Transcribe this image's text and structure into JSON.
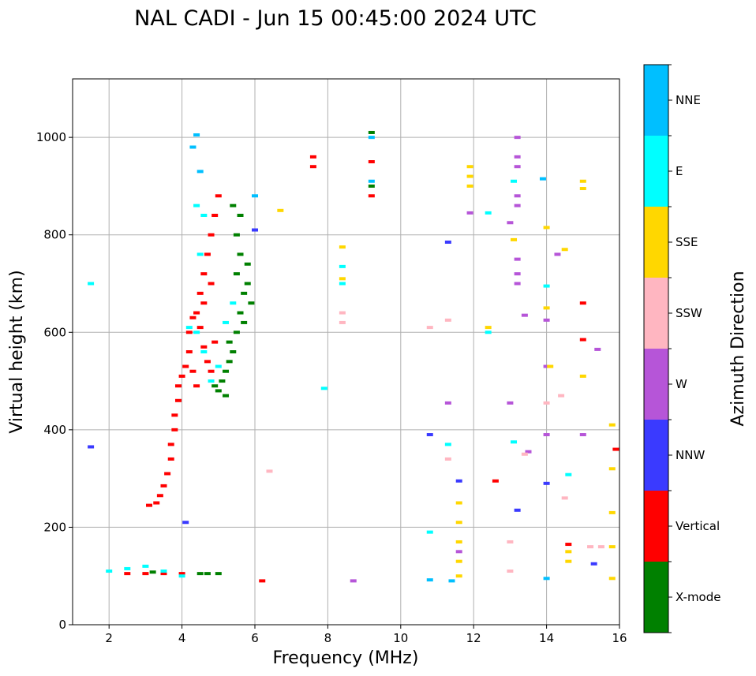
{
  "chart_data": {
    "type": "scatter",
    "title": "NAL CADI - Jun 15 00:45:00 2024 UTC",
    "xlabel": "Frequency (MHz)",
    "ylabel": "Virtual height (km)",
    "xlim": [
      1,
      16
    ],
    "ylim": [
      0,
      1120
    ],
    "xticks": [
      "2",
      "4",
      "6",
      "8",
      "10",
      "12",
      "14",
      "16"
    ],
    "yticks": [
      "0",
      "200",
      "400",
      "600",
      "800",
      "1000"
    ],
    "grid": true,
    "colorbar": {
      "label": "Azimuth Direction",
      "categories": [
        {
          "name": "X-mode",
          "color": "#008000"
        },
        {
          "name": "Vertical",
          "color": "#ff0000"
        },
        {
          "name": "NNW",
          "color": "#3a3aff"
        },
        {
          "name": "W",
          "color": "#b655d8"
        },
        {
          "name": "SSW",
          "color": "#ffb6c1"
        },
        {
          "name": "SSE",
          "color": "#ffd700"
        },
        {
          "name": "E",
          "color": "#00ffff"
        },
        {
          "name": "NNE",
          "color": "#00bfff"
        }
      ]
    },
    "series": [
      {
        "name": "X-mode",
        "points": [
          [
            5.0,
            480
          ],
          [
            5.1,
            500
          ],
          [
            5.2,
            520
          ],
          [
            5.3,
            540
          ],
          [
            5.4,
            560
          ],
          [
            5.5,
            600
          ],
          [
            5.6,
            640
          ],
          [
            5.7,
            680
          ],
          [
            5.5,
            720
          ],
          [
            5.6,
            760
          ],
          [
            5.5,
            800
          ],
          [
            5.6,
            840
          ],
          [
            5.4,
            860
          ],
          [
            5.8,
            700
          ],
          [
            5.9,
            660
          ],
          [
            5.2,
            470
          ],
          [
            4.9,
            490
          ],
          [
            5.3,
            580
          ],
          [
            5.7,
            620
          ],
          [
            5.8,
            740
          ],
          [
            4.5,
            105
          ],
          [
            4.7,
            105
          ],
          [
            5.0,
            105
          ],
          [
            3.2,
            108
          ],
          [
            9.2,
            900
          ],
          [
            9.2,
            1010
          ]
        ]
      },
      {
        "name": "Vertical",
        "points": [
          [
            3.1,
            245
          ],
          [
            3.3,
            250
          ],
          [
            3.4,
            265
          ],
          [
            3.5,
            285
          ],
          [
            3.6,
            310
          ],
          [
            3.7,
            340
          ],
          [
            3.7,
            370
          ],
          [
            3.8,
            400
          ],
          [
            3.8,
            430
          ],
          [
            3.9,
            460
          ],
          [
            3.9,
            490
          ],
          [
            4.0,
            510
          ],
          [
            4.1,
            530
          ],
          [
            4.2,
            560
          ],
          [
            4.2,
            600
          ],
          [
            4.3,
            630
          ],
          [
            4.4,
            640
          ],
          [
            4.5,
            610
          ],
          [
            4.6,
            570
          ],
          [
            4.7,
            540
          ],
          [
            4.8,
            520
          ],
          [
            4.9,
            580
          ],
          [
            4.5,
            680
          ],
          [
            4.6,
            720
          ],
          [
            4.7,
            760
          ],
          [
            4.8,
            800
          ],
          [
            4.9,
            840
          ],
          [
            5.0,
            880
          ],
          [
            4.6,
            660
          ],
          [
            4.8,
            700
          ],
          [
            4.3,
            520
          ],
          [
            4.4,
            490
          ],
          [
            2.5,
            105
          ],
          [
            3.0,
            105
          ],
          [
            3.5,
            105
          ],
          [
            4.0,
            105
          ],
          [
            6.2,
            90
          ],
          [
            7.6,
            960
          ],
          [
            7.6,
            940
          ],
          [
            9.2,
            950
          ],
          [
            9.2,
            880
          ],
          [
            12.6,
            295
          ],
          [
            15.0,
            660
          ],
          [
            15.0,
            585
          ],
          [
            14.6,
            165
          ],
          [
            15.9,
            360
          ]
        ]
      },
      {
        "name": "NNW",
        "points": [
          [
            1.5,
            365
          ],
          [
            4.1,
            210
          ],
          [
            10.8,
            390
          ],
          [
            11.6,
            295
          ],
          [
            13.2,
            235
          ],
          [
            14.0,
            290
          ],
          [
            15.3,
            125
          ],
          [
            6.0,
            810
          ],
          [
            11.3,
            785
          ]
        ]
      },
      {
        "name": "W",
        "points": [
          [
            13.2,
            1000
          ],
          [
            13.2,
            960
          ],
          [
            13.2,
            940
          ],
          [
            13.2,
            880
          ],
          [
            13.2,
            860
          ],
          [
            13.2,
            750
          ],
          [
            13.2,
            720
          ],
          [
            13.2,
            700
          ],
          [
            13.4,
            635
          ],
          [
            13.0,
            455
          ],
          [
            13.5,
            355
          ],
          [
            14.0,
            625
          ],
          [
            14.0,
            530
          ],
          [
            14.0,
            390
          ],
          [
            15.4,
            565
          ],
          [
            15.0,
            390
          ],
          [
            8.7,
            90
          ],
          [
            11.6,
            150
          ],
          [
            11.3,
            455
          ],
          [
            11.9,
            845
          ],
          [
            13.0,
            825
          ],
          [
            14.3,
            760
          ]
        ]
      },
      {
        "name": "SSW",
        "points": [
          [
            13.0,
            170
          ],
          [
            13.0,
            110
          ],
          [
            13.4,
            350
          ],
          [
            14.0,
            455
          ],
          [
            14.4,
            470
          ],
          [
            14.5,
            260
          ],
          [
            15.2,
            160
          ],
          [
            15.5,
            160
          ],
          [
            11.3,
            340
          ],
          [
            11.3,
            625
          ],
          [
            10.8,
            610
          ],
          [
            8.4,
            640
          ],
          [
            8.4,
            620
          ],
          [
            6.4,
            315
          ]
        ]
      },
      {
        "name": "SSE",
        "points": [
          [
            11.6,
            250
          ],
          [
            11.6,
            210
          ],
          [
            11.6,
            170
          ],
          [
            11.6,
            130
          ],
          [
            11.6,
            100
          ],
          [
            11.9,
            940
          ],
          [
            11.9,
            920
          ],
          [
            11.9,
            900
          ],
          [
            12.4,
            610
          ],
          [
            13.1,
            790
          ],
          [
            14.0,
            815
          ],
          [
            14.0,
            650
          ],
          [
            14.1,
            530
          ],
          [
            14.5,
            770
          ],
          [
            15.0,
            910
          ],
          [
            15.0,
            895
          ],
          [
            15.0,
            510
          ],
          [
            15.8,
            410
          ],
          [
            15.8,
            320
          ],
          [
            15.8,
            230
          ],
          [
            15.8,
            160
          ],
          [
            15.8,
            95
          ],
          [
            14.6,
            150
          ],
          [
            14.6,
            130
          ],
          [
            8.4,
            775
          ],
          [
            8.4,
            710
          ],
          [
            6.7,
            850
          ]
        ]
      },
      {
        "name": "E",
        "points": [
          [
            1.5,
            700
          ],
          [
            2.0,
            110
          ],
          [
            2.5,
            115
          ],
          [
            3.0,
            120
          ],
          [
            3.5,
            110
          ],
          [
            4.0,
            100
          ],
          [
            4.4,
            860
          ],
          [
            4.6,
            840
          ],
          [
            4.2,
            610
          ],
          [
            4.4,
            600
          ],
          [
            4.6,
            560
          ],
          [
            4.8,
            500
          ],
          [
            5.0,
            530
          ],
          [
            5.2,
            620
          ],
          [
            5.4,
            660
          ],
          [
            4.5,
            760
          ],
          [
            8.4,
            735
          ],
          [
            8.4,
            700
          ],
          [
            7.9,
            485
          ],
          [
            12.4,
            845
          ],
          [
            12.4,
            600
          ],
          [
            13.1,
            910
          ],
          [
            13.1,
            375
          ],
          [
            14.0,
            695
          ],
          [
            14.6,
            308
          ],
          [
            11.3,
            370
          ],
          [
            10.8,
            190
          ]
        ]
      },
      {
        "name": "NNE",
        "points": [
          [
            4.4,
            1005
          ],
          [
            4.3,
            980
          ],
          [
            4.5,
            930
          ],
          [
            6.0,
            880
          ],
          [
            9.2,
            1000
          ],
          [
            9.2,
            910
          ],
          [
            10.8,
            92
          ],
          [
            11.4,
            90
          ],
          [
            13.9,
            915
          ],
          [
            14.0,
            95
          ]
        ]
      }
    ]
  }
}
